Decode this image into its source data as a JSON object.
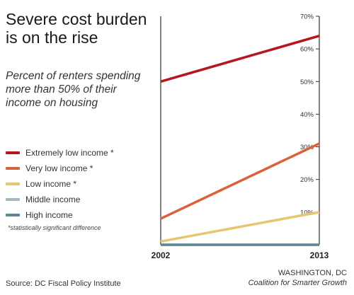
{
  "title": "Severe cost burden is on the rise",
  "subtitle": "Percent of renters spending more than 50% of their income on housing",
  "footnote": "*statistically significant difference",
  "source": "Source: DC Fiscal Policy Institute",
  "credit": {
    "location": "WASHINGTON, DC",
    "org": "Coalition for Smarter Growth"
  },
  "chart_data": {
    "type": "line",
    "x": [
      "2002",
      "2013"
    ],
    "ylim": [
      0,
      70
    ],
    "yticks": [
      10,
      20,
      30,
      40,
      50,
      60,
      70
    ],
    "ytick_labels": [
      "10%",
      "20%",
      "30%",
      "40%",
      "50%",
      "60%",
      "70%"
    ],
    "legend_position": "left",
    "grid": false,
    "series": [
      {
        "name": "Extremely low income *",
        "color": "#b5171f",
        "values": [
          50,
          64
        ]
      },
      {
        "name": "Very low income *",
        "color": "#d9623b",
        "values": [
          8,
          31
        ]
      },
      {
        "name": "Low income *",
        "color": "#e8c570",
        "values": [
          1,
          10
        ]
      },
      {
        "name": "Middle income",
        "color": "#a3b8c2",
        "values": [
          0,
          0
        ]
      },
      {
        "name": "High income",
        "color": "#5e8796",
        "values": [
          0,
          0
        ]
      }
    ]
  }
}
